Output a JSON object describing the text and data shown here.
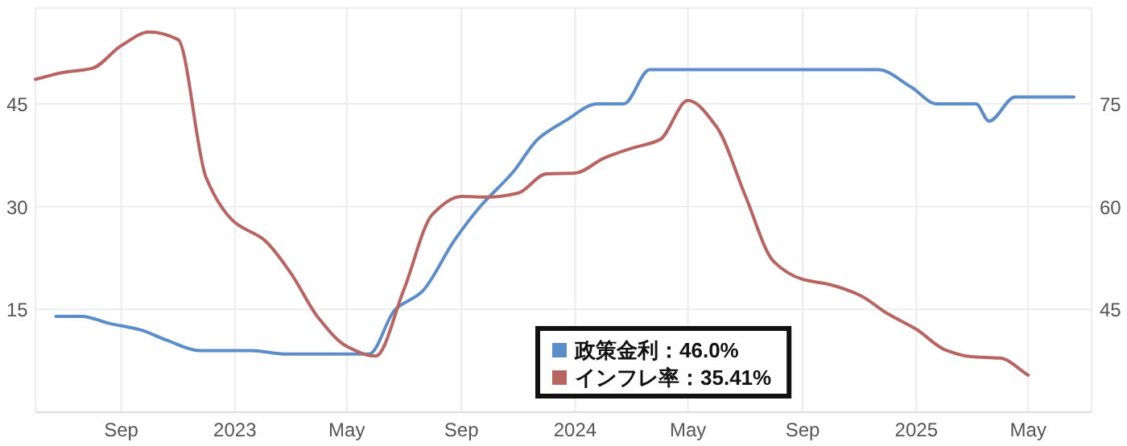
{
  "chart_data": {
    "type": "line",
    "xlim": [
      "2022-06-01",
      "2025-07-08"
    ],
    "xticks": [
      {
        "value": "2022-09-01",
        "label": "Sep"
      },
      {
        "value": "2023-01-01",
        "label": "2023"
      },
      {
        "value": "2023-05-01",
        "label": "May"
      },
      {
        "value": "2023-09-01",
        "label": "Sep"
      },
      {
        "value": "2024-01-01",
        "label": "2024"
      },
      {
        "value": "2024-05-01",
        "label": "May"
      },
      {
        "value": "2024-09-01",
        "label": "Sep"
      },
      {
        "value": "2025-01-01",
        "label": "2025"
      },
      {
        "value": "2025-05-01",
        "label": "May"
      }
    ],
    "ylim": [
      0,
      59
    ],
    "yticks": [
      15,
      30,
      45
    ],
    "y2lim": [
      30,
      89
    ],
    "y2ticks": [
      45,
      60,
      75
    ],
    "grid": true,
    "legend": "bottom",
    "marker": "none",
    "line_style": "solid",
    "series": [
      {
        "name": "政策金利：46.0%",
        "color": "#5b8ec9",
        "axis": "y",
        "x": [
          "2022-06-23",
          "2022-07-21",
          "2022-08-18",
          "2022-09-22",
          "2022-10-20",
          "2022-11-24",
          "2022-12-22",
          "2023-01-19",
          "2023-02-23",
          "2023-03-23",
          "2023-04-27",
          "2023-05-25",
          "2023-06-22",
          "2023-07-20",
          "2023-08-24",
          "2023-09-21",
          "2023-10-26",
          "2023-11-23",
          "2023-12-21",
          "2024-01-25",
          "2024-02-22",
          "2024-03-21",
          "2024-04-25",
          "2024-06-27",
          "2024-08-20",
          "2024-10-17",
          "2024-11-21",
          "2024-12-26",
          "2025-01-23",
          "2025-03-06",
          "2025-03-20",
          "2025-04-17",
          "2025-06-19"
        ],
        "values": [
          14,
          14,
          13,
          12,
          10.5,
          9,
          9,
          9,
          8.5,
          8.5,
          8.5,
          8.5,
          15,
          17.5,
          25,
          30,
          35,
          40,
          42.5,
          45,
          45,
          50,
          50,
          50,
          50,
          50,
          50,
          47.5,
          45,
          45,
          42.5,
          46,
          46
        ]
      },
      {
        "name": "インフレ率：35.41%",
        "color": "#b86562",
        "axis": "y2",
        "x": [
          "2022-06-01",
          "2022-07-01",
          "2022-08-01",
          "2022-09-01",
          "2022-10-01",
          "2022-11-01",
          "2022-12-01",
          "2023-01-01",
          "2023-02-01",
          "2023-03-01",
          "2023-04-01",
          "2023-05-01",
          "2023-06-01",
          "2023-07-01",
          "2023-08-01",
          "2023-09-01",
          "2023-10-01",
          "2023-11-01",
          "2023-12-01",
          "2024-01-01",
          "2024-02-01",
          "2024-03-01",
          "2024-04-01",
          "2024-05-01",
          "2024-06-01",
          "2024-07-01",
          "2024-08-01",
          "2024-09-01",
          "2024-10-01",
          "2024-11-01",
          "2024-12-01",
          "2025-01-01",
          "2025-02-01",
          "2025-03-01",
          "2025-04-01",
          "2025-05-01"
        ],
        "values": [
          78.6,
          79.6,
          80.2,
          83.5,
          85.5,
          84.4,
          64.3,
          57.7,
          55.2,
          50.5,
          43.7,
          39.6,
          38.2,
          47.8,
          58.9,
          61.5,
          61.4,
          62,
          64.8,
          64.9,
          67.1,
          68.5,
          69.8,
          75.5,
          71.6,
          61.8,
          52,
          49.4,
          48.6,
          47.1,
          44.4,
          42.1,
          39.1,
          38.1,
          37.9,
          35.4
        ]
      }
    ]
  }
}
